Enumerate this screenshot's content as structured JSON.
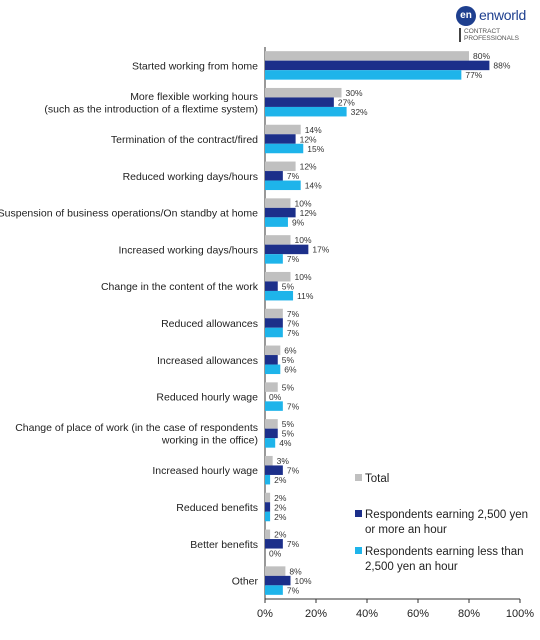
{
  "logo": {
    "mark": "en",
    "brand": "enworld",
    "sub_line1": "CONTRACT",
    "sub_line2": "PROFESSIONALS"
  },
  "colors": {
    "total": "#c0c0c0",
    "high": "#1c2f8a",
    "low": "#1eb4ea"
  },
  "chart_data": {
    "type": "bar",
    "orientation": "horizontal",
    "categories": [
      [
        "Started working from home"
      ],
      [
        "More flexible working hours",
        "(such as the introduction of a flextime system)"
      ],
      [
        "Termination of the contract/fired"
      ],
      [
        "Reduced working days/hours"
      ],
      [
        "Suspension of business operations/On standby at home"
      ],
      [
        "Increased working days/hours"
      ],
      [
        "Change in the content of the work"
      ],
      [
        "Reduced allowances"
      ],
      [
        "Increased allowances"
      ],
      [
        "Reduced hourly wage"
      ],
      [
        "Change of place of work (in the case of respondents",
        "working in the office)"
      ],
      [
        "Increased hourly wage"
      ],
      [
        "Reduced benefits"
      ],
      [
        "Better benefits"
      ],
      [
        "Other"
      ]
    ],
    "series": [
      {
        "name": "Total",
        "values": [
          80,
          30,
          14,
          12,
          10,
          10,
          10,
          7,
          6,
          5,
          5,
          3,
          2,
          2,
          8
        ]
      },
      {
        "name": "Respondents earning 2,500 yen or more an hour",
        "values": [
          88,
          27,
          12,
          7,
          12,
          17,
          5,
          7,
          5,
          0,
          5,
          7,
          2,
          7,
          10
        ]
      },
      {
        "name": "Respondents earning less than 2,500 yen an hour",
        "values": [
          77,
          32,
          15,
          14,
          9,
          7,
          11,
          7,
          6,
          7,
          4,
          2,
          2,
          0,
          7
        ]
      }
    ],
    "xlim": [
      0,
      100
    ],
    "xticks": [
      "0%",
      "20%",
      "40%",
      "60%",
      "80%",
      "100%"
    ],
    "value_suffix": "%",
    "legend_position": "bottom-right",
    "legend": [
      [
        "Total"
      ],
      [
        "Respondents earning 2,500 yen",
        "or more an hour"
      ],
      [
        "Respondents earning less than",
        "2,500 yen an hour"
      ]
    ]
  }
}
